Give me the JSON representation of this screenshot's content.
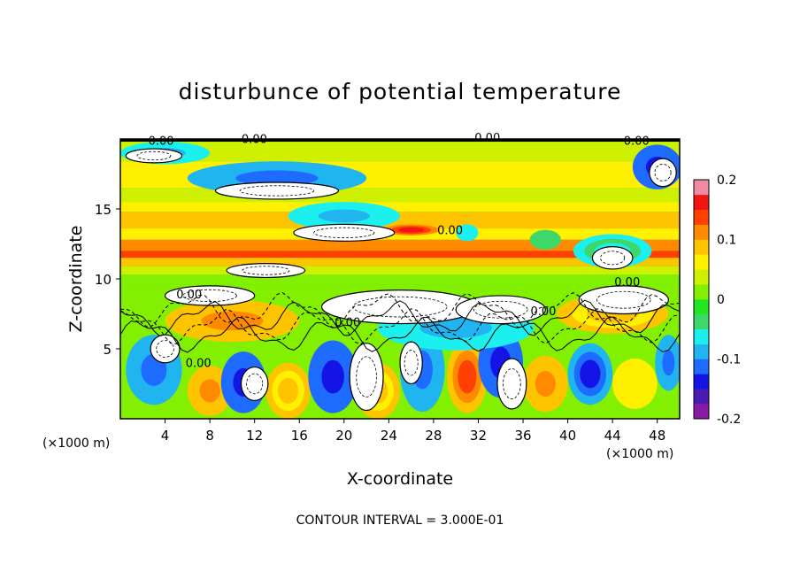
{
  "chart_data": {
    "type": "heatmap",
    "title": "disturbunce of potential temperature",
    "xlabel": "X-coordinate",
    "ylabel": "Z-coordinate",
    "x_units_left": "(×1000 m)",
    "x_units_right": "(×1000 m)",
    "xlim": [
      0,
      50
    ],
    "ylim": [
      0,
      20
    ],
    "x_ticks": [
      4,
      8,
      12,
      16,
      20,
      24,
      28,
      32,
      36,
      40,
      44,
      48
    ],
    "y_ticks": [
      5,
      10,
      15
    ],
    "colorbar": {
      "range": [
        -0.2,
        0.2
      ],
      "tick_values": [
        -0.2,
        -0.1,
        0,
        0.1,
        0.2
      ],
      "tick_labels": [
        "-0.2",
        "-0.1",
        "0",
        "0.1",
        "0.2"
      ],
      "colors": [
        "#8a1aa6",
        "#4a1ab4",
        "#1414e6",
        "#1e6cff",
        "#20b4f0",
        "#1cf0ee",
        "#3ed86a",
        "#22e622",
        "#82f000",
        "#cff000",
        "#fff000",
        "#ffc400",
        "#ff8a00",
        "#ff4000",
        "#f01414",
        "#f08aa0"
      ]
    },
    "contour_labels": [
      "0.00",
      "0.00",
      "0.00",
      "0.00",
      "0.00",
      "0.00",
      "0.00",
      "0.00",
      "0.00",
      "0.00"
    ],
    "footer": "CONTOUR INTERVAL = 3.000E-01",
    "bands": [
      {
        "z0": 18.4,
        "z1": 19.8,
        "value": 0.03
      },
      {
        "z0": 16.5,
        "z1": 18.4,
        "value": 0.06
      },
      {
        "z0": 15.5,
        "z1": 16.5,
        "value": 0.03
      },
      {
        "z0": 14.8,
        "z1": 15.5,
        "value": 0.06
      },
      {
        "z0": 13.6,
        "z1": 14.8,
        "value": 0.08
      },
      {
        "z0": 12.8,
        "z1": 13.6,
        "value": 0.06
      },
      {
        "z0": 12.0,
        "z1": 12.8,
        "value": 0.1
      },
      {
        "z0": 11.5,
        "z1": 12.0,
        "value": 0.14
      },
      {
        "z0": 10.9,
        "z1": 11.5,
        "value": 0.08
      },
      {
        "z0": 10.3,
        "z1": 10.9,
        "value": 0.04
      },
      {
        "z0": 9.6,
        "z1": 10.3,
        "value": 0.01
      },
      {
        "z0": 0,
        "z1": 9.6,
        "value": 0.0
      }
    ],
    "cells": [
      {
        "x": 4,
        "z": 19.0,
        "rx": 4,
        "rz": 0.8,
        "value": -0.1
      },
      {
        "x": 14,
        "z": 17.2,
        "rx": 8,
        "rz": 1.2,
        "value": -0.12
      },
      {
        "x": 20,
        "z": 14.5,
        "rx": 5,
        "rz": 1.0,
        "value": -0.1
      },
      {
        "x": 48,
        "z": 18.0,
        "rx": 2.2,
        "rz": 1.6,
        "value": -0.15
      },
      {
        "x": 38,
        "z": 12.8,
        "rx": 1.4,
        "rz": 0.7,
        "value": -0.05
      },
      {
        "x": 44,
        "z": 12.0,
        "rx": 3.5,
        "rz": 1.2,
        "value": -0.06
      },
      {
        "x": 26,
        "z": 13.5,
        "rx": 2.5,
        "rz": 0.4,
        "value": 0.18
      },
      {
        "x": 31,
        "z": 13.3,
        "rx": 1.0,
        "rz": 0.6,
        "value": -0.08
      },
      {
        "x": 3,
        "z": 3.5,
        "rx": 2.5,
        "rz": 2.5,
        "value": -0.12
      },
      {
        "x": 8,
        "z": 2.0,
        "rx": 2.0,
        "rz": 1.8,
        "value": 0.12
      },
      {
        "x": 11,
        "z": 2.6,
        "rx": 2.0,
        "rz": 2.2,
        "value": -0.15
      },
      {
        "x": 15,
        "z": 2.0,
        "rx": 2.0,
        "rz": 2.0,
        "value": 0.1
      },
      {
        "x": 19,
        "z": 3.0,
        "rx": 2.2,
        "rz": 2.6,
        "value": -0.15
      },
      {
        "x": 23,
        "z": 2.0,
        "rx": 2.0,
        "rz": 2.0,
        "value": 0.1
      },
      {
        "x": 27,
        "z": 3.5,
        "rx": 2.0,
        "rz": 3.0,
        "value": -0.12
      },
      {
        "x": 31,
        "z": 3.0,
        "rx": 1.8,
        "rz": 2.6,
        "value": 0.14
      },
      {
        "x": 34,
        "z": 4.0,
        "rx": 2.0,
        "rz": 2.5,
        "value": -0.15
      },
      {
        "x": 38,
        "z": 2.5,
        "rx": 2.0,
        "rz": 2.0,
        "value": 0.12
      },
      {
        "x": 42,
        "z": 3.2,
        "rx": 2.0,
        "rz": 2.2,
        "value": -0.14
      },
      {
        "x": 46,
        "z": 2.5,
        "rx": 2.0,
        "rz": 1.8,
        "value": 0.08
      },
      {
        "x": 49,
        "z": 4.0,
        "rx": 1.2,
        "rz": 2.0,
        "value": -0.12
      },
      {
        "x": 10,
        "z": 7.0,
        "rx": 6,
        "rz": 1.5,
        "value": 0.12
      },
      {
        "x": 30,
        "z": 6.5,
        "rx": 7,
        "rz": 1.6,
        "value": -0.1
      },
      {
        "x": 44,
        "z": 7.5,
        "rx": 5,
        "rz": 1.4,
        "value": 0.1
      }
    ],
    "saturated": [
      {
        "x": 14,
        "z": 16.3,
        "rx": 5.5,
        "rz": 0.6
      },
      {
        "x": 20,
        "z": 13.3,
        "rx": 4.5,
        "rz": 0.6
      },
      {
        "x": 3,
        "z": 18.8,
        "rx": 2.5,
        "rz": 0.5
      },
      {
        "x": 48.5,
        "z": 17.6,
        "rx": 1.2,
        "rz": 1.0
      },
      {
        "x": 44,
        "z": 11.5,
        "rx": 1.8,
        "rz": 0.8
      },
      {
        "x": 13,
        "z": 10.6,
        "rx": 3.5,
        "rz": 0.5
      },
      {
        "x": 8,
        "z": 8.8,
        "rx": 4,
        "rz": 0.7
      },
      {
        "x": 25,
        "z": 8.0,
        "rx": 7,
        "rz": 1.2
      },
      {
        "x": 34,
        "z": 7.8,
        "rx": 4,
        "rz": 1.0
      },
      {
        "x": 45,
        "z": 8.5,
        "rx": 4,
        "rz": 1.0
      },
      {
        "x": 22,
        "z": 3.0,
        "rx": 1.5,
        "rz": 2.4
      },
      {
        "x": 35,
        "z": 2.5,
        "rx": 1.3,
        "rz": 1.8
      },
      {
        "x": 12,
        "z": 2.5,
        "rx": 1.2,
        "rz": 1.2
      },
      {
        "x": 26,
        "z": 4.0,
        "rx": 1.0,
        "rz": 1.5
      },
      {
        "x": 4,
        "z": 5.0,
        "rx": 1.3,
        "rz": 1.0
      }
    ]
  }
}
